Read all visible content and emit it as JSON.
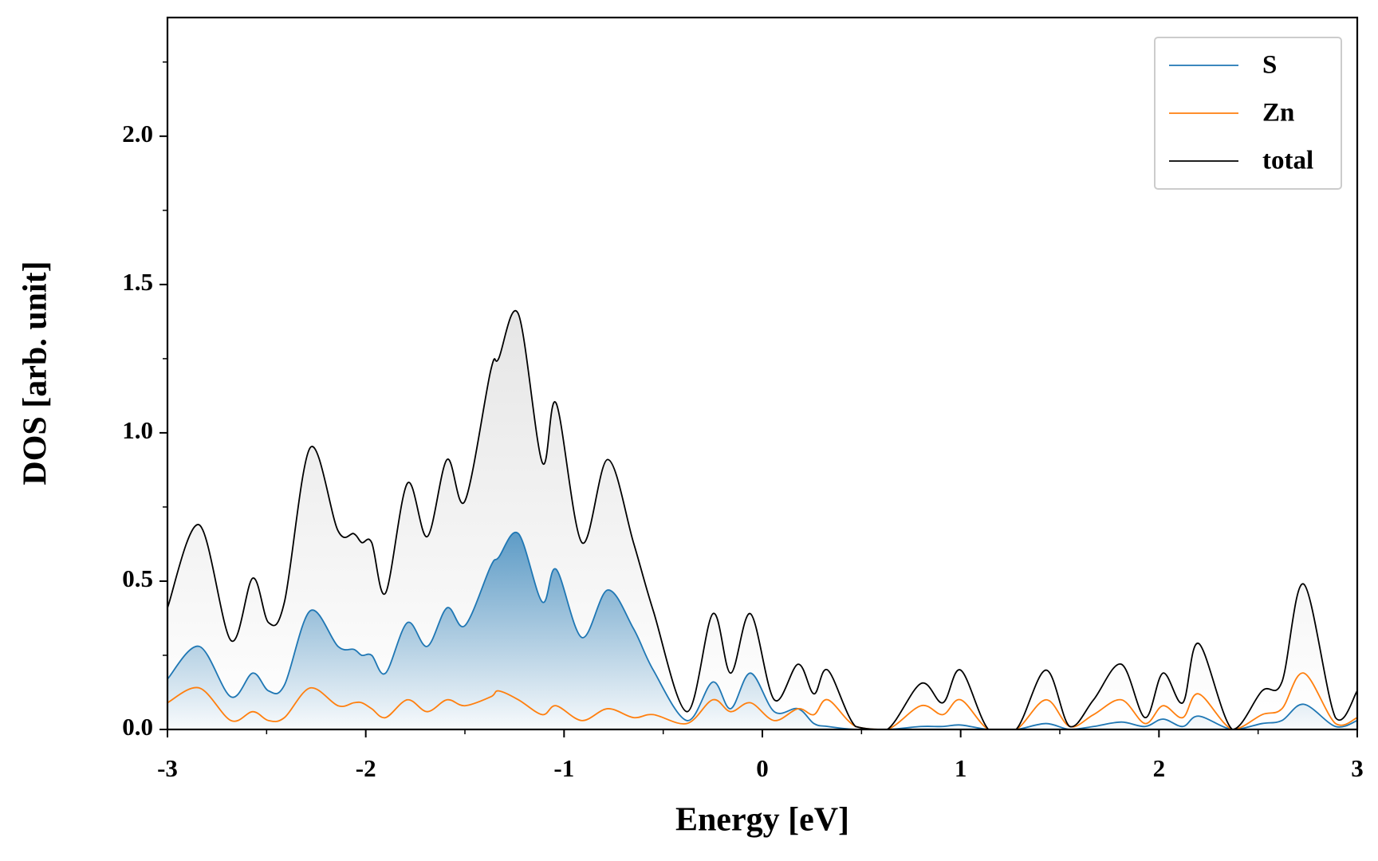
{
  "chart_data": {
    "type": "line",
    "xlabel": "Energy [eV]",
    "ylabel": "DOS [arb. unit]",
    "x": [
      -3,
      -2.84,
      -2.68,
      -2.57,
      -2.49,
      -2.41,
      -2.28,
      -2.14,
      -2.06,
      -2.02,
      -1.97,
      -1.9,
      -1.79,
      -1.69,
      -1.59,
      -1.5,
      -1.37,
      -1.33,
      -1.23,
      -1.11,
      -1.04,
      -0.91,
      -0.78,
      -0.65,
      -0.55,
      -0.38,
      -0.25,
      -0.16,
      -0.06,
      0.06,
      0.18,
      0.26,
      0.33,
      0.47,
      0.63,
      0.8,
      0.91,
      1.0,
      1.14,
      1.28,
      1.43,
      1.55,
      1.67,
      1.81,
      1.93,
      2.02,
      2.12,
      2.2,
      2.37,
      2.52,
      2.62,
      2.73,
      2.89,
      3.0
    ],
    "series": [
      {
        "name": "S",
        "color": "#1f77b4",
        "fill": true,
        "values": [
          0.17,
          0.28,
          0.11,
          0.19,
          0.13,
          0.15,
          0.4,
          0.28,
          0.27,
          0.25,
          0.25,
          0.19,
          0.36,
          0.28,
          0.41,
          0.35,
          0.55,
          0.58,
          0.66,
          0.43,
          0.54,
          0.31,
          0.47,
          0.34,
          0.2,
          0.03,
          0.16,
          0.07,
          0.19,
          0.06,
          0.07,
          0.02,
          0.01,
          0,
          0,
          0.01,
          0.01,
          0.015,
          0,
          0,
          0.02,
          0,
          0.01,
          0.025,
          0.01,
          0.035,
          0.01,
          0.045,
          0,
          0.02,
          0.03,
          0.085,
          0.01,
          0.03
        ]
      },
      {
        "name": "Zn",
        "color": "#ff7f0e",
        "fill": false,
        "values": [
          0.09,
          0.14,
          0.03,
          0.06,
          0.03,
          0.04,
          0.14,
          0.08,
          0.09,
          0.09,
          0.07,
          0.04,
          0.1,
          0.06,
          0.1,
          0.08,
          0.11,
          0.13,
          0.1,
          0.05,
          0.08,
          0.03,
          0.07,
          0.04,
          0.05,
          0.02,
          0.1,
          0.06,
          0.09,
          0.03,
          0.07,
          0.05,
          0.1,
          0.01,
          0,
          0.08,
          0.05,
          0.1,
          0,
          0,
          0.1,
          0.01,
          0.05,
          0.1,
          0.02,
          0.08,
          0.04,
          0.12,
          0,
          0.05,
          0.07,
          0.19,
          0.02,
          0.04
        ]
      },
      {
        "name": "total",
        "color": "#000000",
        "fill": true,
        "values": [
          0.41,
          0.69,
          0.3,
          0.51,
          0.36,
          0.43,
          0.95,
          0.67,
          0.66,
          0.63,
          0.63,
          0.46,
          0.83,
          0.65,
          0.91,
          0.77,
          1.21,
          1.25,
          1.4,
          0.9,
          1.1,
          0.63,
          0.91,
          0.63,
          0.4,
          0.06,
          0.39,
          0.19,
          0.39,
          0.1,
          0.22,
          0.12,
          0.2,
          0.01,
          0,
          0.155,
          0.09,
          0.2,
          0,
          0,
          0.2,
          0.01,
          0.1,
          0.22,
          0.04,
          0.19,
          0.09,
          0.29,
          0,
          0.13,
          0.16,
          0.49,
          0.04,
          0.13
        ]
      }
    ],
    "xlim": [
      -3,
      3
    ],
    "xticks": [
      -3,
      -2,
      -1,
      0,
      1,
      2,
      3
    ],
    "xminor_ticks": [
      -2.5,
      -1.5,
      -0.5,
      0.5,
      1.5,
      2.5
    ],
    "ylim": [
      0,
      2.4
    ],
    "yticks": [
      {
        "value": 0,
        "label": "0.0"
      },
      0.5,
      {
        "value": 1,
        "label": "1.0"
      },
      1.5,
      {
        "value": 2,
        "label": "2.0"
      }
    ],
    "yminor_ticks": [
      0.25,
      0.75,
      1.25,
      1.75,
      2.25
    ],
    "legend": "upper right",
    "grid": false
  }
}
